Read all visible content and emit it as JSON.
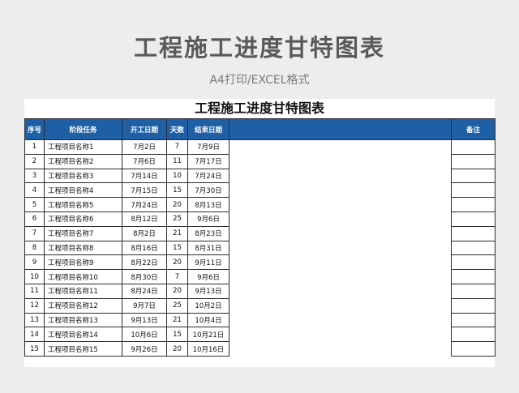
{
  "hero": {
    "title": "工程施工进度甘特图表",
    "subtitle": "A4打印/EXCEL格式"
  },
  "sheet": {
    "title": "工程施工进度甘特图表",
    "headers": {
      "index": "序号",
      "task": "阶段任务",
      "start": "开工日期",
      "days": "天数",
      "end": "结束日期",
      "chart": "",
      "remark": "备注"
    },
    "colors": {
      "header_bg": "#1f5fa6",
      "bar_primary": "#7f9fc6",
      "bar_secondary": "#a07cc2"
    },
    "rows": [
      {
        "no": "1",
        "task": "工程项目名称1",
        "start": "7月2日",
        "days": "7",
        "end": "7月9日",
        "remark": "",
        "bar_a": 0.0,
        "bar_b": 14
      },
      {
        "no": "2",
        "task": "工程项目名称2",
        "start": "7月6日",
        "days": "11",
        "end": "7月17日",
        "remark": "",
        "bar_a": 8,
        "bar_b": 22
      },
      {
        "no": "3",
        "task": "工程项目名称3",
        "start": "7月14日",
        "days": "10",
        "end": "7月24日",
        "remark": "",
        "bar_a": 26,
        "bar_b": 20
      },
      {
        "no": "4",
        "task": "工程项目名称4",
        "start": "7月15日",
        "days": "15",
        "end": "7月30日",
        "remark": "",
        "bar_a": 28,
        "bar_b": 32
      },
      {
        "no": "5",
        "task": "工程项目名称5",
        "start": "7月24日",
        "days": "20",
        "end": "8月13日",
        "remark": "",
        "bar_a": 47,
        "bar_b": 42
      },
      {
        "no": "6",
        "task": "工程项目名称6",
        "start": "8月12日",
        "days": "25",
        "end": "9月6日",
        "remark": "",
        "bar_a": 88,
        "bar_b": 52
      },
      {
        "no": "7",
        "task": "工程项目名称7",
        "start": "8月2日",
        "days": "21",
        "end": "8月23日",
        "remark": "",
        "bar_a": 66,
        "bar_b": 44
      },
      {
        "no": "8",
        "task": "工程项目名称8",
        "start": "8月16日",
        "days": "15",
        "end": "8月31日",
        "remark": "",
        "bar_a": 96,
        "bar_b": 31
      },
      {
        "no": "9",
        "task": "工程项目名称9",
        "start": "8月22日",
        "days": "20",
        "end": "9月11日",
        "remark": "",
        "bar_a": 108,
        "bar_b": 42
      },
      {
        "no": "10",
        "task": "工程项目名称10",
        "start": "8月30日",
        "days": "7",
        "end": "9月6日",
        "remark": "",
        "bar_a": 126,
        "bar_b": 14
      },
      {
        "no": "11",
        "task": "工程项目名称11",
        "start": "8月24日",
        "days": "20",
        "end": "9月13日",
        "remark": "",
        "bar_a": 113,
        "bar_b": 42
      },
      {
        "no": "12",
        "task": "工程项目名称12",
        "start": "9月7日",
        "days": "25",
        "end": "10月2日",
        "remark": "",
        "bar_a": 142,
        "bar_b": 53
      },
      {
        "no": "13",
        "task": "工程项目名称13",
        "start": "9月13日",
        "days": "21",
        "end": "10月4日",
        "remark": "",
        "bar_a": 155,
        "bar_b": 44
      },
      {
        "no": "14",
        "task": "工程项目名称14",
        "start": "10月6日",
        "days": "15",
        "end": "10月21日",
        "remark": "",
        "bar_a": 204,
        "bar_b": 31
      },
      {
        "no": "15",
        "task": "工程项目名称15",
        "start": "9月26日",
        "days": "20",
        "end": "10月16日",
        "remark": "",
        "bar_a": 183,
        "bar_b": 42
      }
    ]
  }
}
